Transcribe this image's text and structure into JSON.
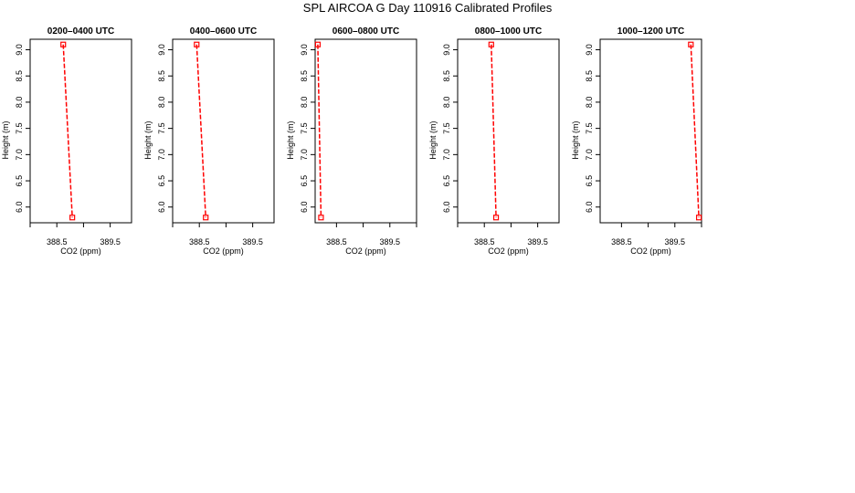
{
  "title": "SPL AIRCOA G  Day 110916  Calibrated Profiles",
  "chart_data": [
    {
      "type": "line",
      "title": "0200–0400 UTC",
      "xlabel": "CO2 (ppm)",
      "ylabel": "Height (m)",
      "xlim": [
        388.0,
        389.9
      ],
      "ylim": [
        5.7,
        9.2
      ],
      "xticks": [
        388.5,
        389.5
      ],
      "xtick_labels": [
        "388.5",
        "389.5"
      ],
      "yticks": [
        6.0,
        6.5,
        7.0,
        7.5,
        8.0,
        8.5,
        9.0
      ],
      "ytick_labels": [
        "6.0",
        "6.5",
        "7.0",
        "7.5",
        "8.0",
        "8.5",
        "9.0"
      ],
      "series": [
        {
          "x": [
            388.62,
            388.79
          ],
          "y": [
            9.1,
            5.8
          ],
          "color": "#ff0000"
        }
      ]
    },
    {
      "type": "line",
      "title": "0400–0600 UTC",
      "xlabel": "CO2 (ppm)",
      "ylabel": "Height (m)",
      "xlim": [
        388.0,
        389.9
      ],
      "ylim": [
        5.7,
        9.2
      ],
      "xticks": [
        388.5,
        389.5
      ],
      "xtick_labels": [
        "388.5",
        "389.5"
      ],
      "yticks": [
        6.0,
        6.5,
        7.0,
        7.5,
        8.0,
        8.5,
        9.0
      ],
      "ytick_labels": [
        "6.0",
        "6.5",
        "7.0",
        "7.5",
        "8.0",
        "8.5",
        "9.0"
      ],
      "series": [
        {
          "x": [
            388.45,
            388.62
          ],
          "y": [
            9.1,
            5.8
          ],
          "color": "#ff0000"
        }
      ]
    },
    {
      "type": "line",
      "title": "0600–0800 UTC",
      "xlabel": "CO2 (ppm)",
      "ylabel": "Height (m)",
      "xlim": [
        388.1,
        390.0
      ],
      "ylim": [
        5.7,
        9.2
      ],
      "xticks": [
        388.5,
        389.5
      ],
      "xtick_labels": [
        "388.5",
        "389.5"
      ],
      "yticks": [
        6.0,
        6.5,
        7.0,
        7.5,
        8.0,
        8.5,
        9.0
      ],
      "ytick_labels": [
        "6.0",
        "6.5",
        "7.0",
        "7.5",
        "8.0",
        "8.5",
        "9.0"
      ],
      "series": [
        {
          "x": [
            388.15,
            388.21
          ],
          "y": [
            9.1,
            5.8
          ],
          "color": "#ff0000"
        }
      ]
    },
    {
      "type": "line",
      "title": "0800–1000 UTC",
      "xlabel": "CO2 (ppm)",
      "ylabel": "Height (m)",
      "xlim": [
        388.0,
        389.9
      ],
      "ylim": [
        5.7,
        9.2
      ],
      "xticks": [
        388.5,
        389.5
      ],
      "xtick_labels": [
        "388.5",
        "389.5"
      ],
      "yticks": [
        6.0,
        6.5,
        7.0,
        7.5,
        8.0,
        8.5,
        9.0
      ],
      "ytick_labels": [
        "6.0",
        "6.5",
        "7.0",
        "7.5",
        "8.0",
        "8.5",
        "9.0"
      ],
      "series": [
        {
          "x": [
            388.63,
            388.72
          ],
          "y": [
            9.1,
            5.8
          ],
          "color": "#ff0000"
        }
      ]
    },
    {
      "type": "line",
      "title": "1000–1200 UTC",
      "xlabel": "CO2 (ppm)",
      "ylabel": "Height (m)",
      "xlim": [
        388.1,
        390.0
      ],
      "ylim": [
        5.7,
        9.2
      ],
      "xticks": [
        388.5,
        389.5
      ],
      "xtick_labels": [
        "388.5",
        "389.5"
      ],
      "yticks": [
        6.0,
        6.5,
        7.0,
        7.5,
        8.0,
        8.5,
        9.0
      ],
      "ytick_labels": [
        "6.0",
        "6.5",
        "7.0",
        "7.5",
        "8.0",
        "8.5",
        "9.0"
      ],
      "series": [
        {
          "x": [
            389.8,
            389.95
          ],
          "y": [
            9.1,
            5.8
          ],
          "color": "#ff0000"
        }
      ]
    }
  ]
}
